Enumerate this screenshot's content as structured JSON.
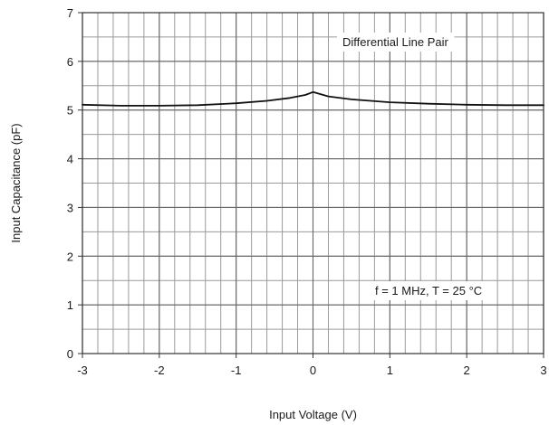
{
  "chart_data": {
    "type": "line",
    "title": "",
    "xlabel": "Input Voltage (V)",
    "ylabel": "Input Capacitance (pF)",
    "xlim": [
      -3,
      3
    ],
    "ylim": [
      0,
      7
    ],
    "x_ticks": [
      -3,
      -2,
      -1,
      0,
      1,
      2,
      3
    ],
    "y_ticks": [
      0,
      1,
      2,
      3,
      4,
      5,
      6,
      7
    ],
    "x_tick_labels": [
      "-3",
      "-2",
      "-1",
      "0",
      "1",
      "2",
      "3"
    ],
    "y_tick_labels": [
      "0",
      "1",
      "2",
      "3",
      "4",
      "5",
      "6",
      "7"
    ],
    "x_minor_step": 0.2,
    "y_minor_step": 0.5,
    "grid": true,
    "line_color": "#111111",
    "grid_color": "#9a9a9a",
    "annotations": [
      {
        "text": "Differential Line Pair",
        "position": "top-right"
      },
      {
        "text": "f = 1 MHz, T = 25 °C",
        "position": "bottom-right"
      }
    ],
    "series": [
      {
        "x": [
          -3.0,
          -2.5,
          -2.0,
          -1.5,
          -1.0,
          -0.6,
          -0.3,
          -0.1,
          0.0,
          0.2,
          0.5,
          1.0,
          1.5,
          2.0,
          2.5,
          3.0
        ],
        "y": [
          5.11,
          5.09,
          5.09,
          5.1,
          5.14,
          5.19,
          5.25,
          5.31,
          5.37,
          5.28,
          5.22,
          5.16,
          5.13,
          5.11,
          5.1,
          5.1
        ]
      }
    ]
  }
}
